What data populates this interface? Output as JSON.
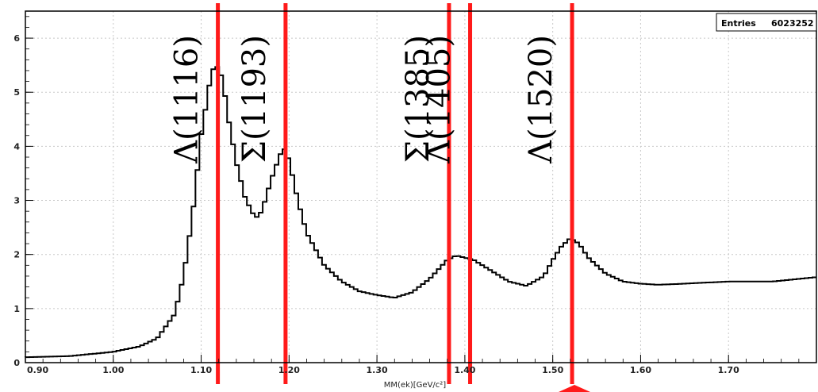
{
  "chart_data": {
    "type": "histogram",
    "title": "",
    "xlabel": "MM(ek)[GeV/c²]",
    "ylabel": "",
    "xlim": [
      0.9,
      1.8
    ],
    "ylim": [
      0,
      6.5
    ],
    "x_ticks": [
      "0.90",
      "1.00",
      "1.10",
      "1.20",
      "1.30",
      "1.40",
      "1.50",
      "1.60",
      "1.70"
    ],
    "y_ticks": [
      "0",
      "1",
      "2",
      "3",
      "4",
      "5",
      "6"
    ],
    "grid": true,
    "stats_box": {
      "label": "Entries",
      "value": "6023252"
    },
    "series": [
      {
        "x": [
          0.9,
          0.95,
          1.0,
          1.03,
          1.05,
          1.07,
          1.08,
          1.09,
          1.1,
          1.11,
          1.115,
          1.12,
          1.125,
          1.13,
          1.14,
          1.15,
          1.16,
          1.165,
          1.17,
          1.18,
          1.19,
          1.195,
          1.2,
          1.21,
          1.22,
          1.24,
          1.26,
          1.28,
          1.3,
          1.32,
          1.34,
          1.36,
          1.38,
          1.39,
          1.41,
          1.43,
          1.45,
          1.47,
          1.49,
          1.5,
          1.51,
          1.52,
          1.53,
          1.54,
          1.56,
          1.58,
          1.6,
          1.62,
          1.65,
          1.7,
          1.75,
          1.8
        ],
        "y": [
          0.1,
          0.12,
          0.2,
          0.3,
          0.45,
          0.9,
          1.6,
          2.7,
          4.2,
          5.2,
          5.5,
          5.45,
          5.2,
          4.6,
          3.7,
          3.05,
          2.72,
          2.68,
          2.85,
          3.4,
          3.85,
          3.95,
          3.75,
          3.0,
          2.4,
          1.8,
          1.5,
          1.32,
          1.25,
          1.2,
          1.3,
          1.55,
          1.9,
          1.98,
          1.9,
          1.7,
          1.5,
          1.42,
          1.6,
          1.9,
          2.15,
          2.3,
          2.2,
          1.95,
          1.65,
          1.5,
          1.46,
          1.44,
          1.46,
          1.5,
          1.5,
          1.58
        ]
      }
    ],
    "markers": [
      {
        "label": "Λ(1116)",
        "x": 1.119,
        "color": "#ff1a1a"
      },
      {
        "label": "Σ(1193)",
        "x": 1.196,
        "color": "#ff1a1a"
      },
      {
        "label": "Σ(1385)",
        "x": 1.382,
        "color": "#ff1a1a"
      },
      {
        "label": "Λ(1405)",
        "x": 1.406,
        "color": "#ff1a1a"
      },
      {
        "label": "Λ(1520)",
        "x": 1.522,
        "color": "#ff1a1a"
      }
    ]
  }
}
